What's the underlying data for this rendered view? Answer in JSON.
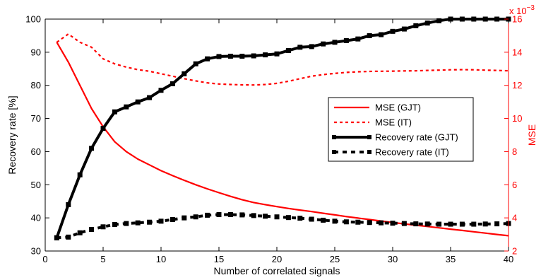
{
  "chart_data": {
    "type": "line",
    "xlabel": "Number of correlated signals",
    "ylabel_left": "Recovery rate [%]",
    "ylabel_right": "MSE",
    "right_axis_exponent": "x 10",
    "right_axis_exponent_power": "−3",
    "x_range": [
      0,
      40
    ],
    "x_ticks": [
      0,
      5,
      10,
      15,
      20,
      25,
      30,
      35,
      40
    ],
    "y_left_range": [
      30,
      100
    ],
    "y_left_ticks": [
      30,
      40,
      50,
      60,
      70,
      80,
      90,
      100
    ],
    "y_right_range": [
      2,
      16
    ],
    "y_right_ticks": [
      2,
      4,
      6,
      8,
      10,
      12,
      14,
      16
    ],
    "grid": false,
    "legend_position": "center-right",
    "colors": {
      "mse": "#ff0000",
      "recovery": "#000000",
      "right_axis": "#ff0000"
    },
    "series": [
      {
        "name": "MSE (GJT)",
        "axis": "right",
        "style": "solid",
        "color": "#ff0000",
        "x": [
          1,
          2,
          3,
          4,
          5,
          6,
          7,
          8,
          9,
          10,
          11,
          12,
          13,
          14,
          15,
          16,
          17,
          18,
          19,
          20,
          21,
          22,
          23,
          24,
          25,
          26,
          27,
          28,
          29,
          30,
          31,
          32,
          33,
          34,
          35,
          36,
          37,
          38,
          39,
          40
        ],
        "y": [
          14.6,
          13.4,
          12.0,
          10.6,
          9.5,
          8.6,
          8.0,
          7.55,
          7.2,
          6.85,
          6.55,
          6.27,
          6.0,
          5.75,
          5.52,
          5.3,
          5.1,
          4.93,
          4.8,
          4.68,
          4.57,
          4.47,
          4.38,
          4.28,
          4.18,
          4.08,
          3.99,
          3.9,
          3.81,
          3.72,
          3.64,
          3.56,
          3.48,
          3.4,
          3.32,
          3.24,
          3.16,
          3.08,
          3.0,
          2.92
        ]
      },
      {
        "name": "MSE (IT)",
        "axis": "right",
        "style": "dotted",
        "color": "#ff0000",
        "x": [
          1,
          2,
          3,
          4,
          5,
          6,
          7,
          8,
          9,
          10,
          11,
          12,
          13,
          14,
          15,
          16,
          17,
          18,
          19,
          20,
          21,
          22,
          23,
          24,
          25,
          26,
          27,
          28,
          29,
          30,
          31,
          32,
          33,
          34,
          35,
          36,
          37,
          38,
          39,
          40
        ],
        "y": [
          14.6,
          15.1,
          14.6,
          14.3,
          13.6,
          13.3,
          13.1,
          12.95,
          12.85,
          12.7,
          12.55,
          12.4,
          12.27,
          12.15,
          12.08,
          12.05,
          12.03,
          12.02,
          12.05,
          12.12,
          12.25,
          12.4,
          12.55,
          12.65,
          12.72,
          12.78,
          12.82,
          12.84,
          12.85,
          12.86,
          12.87,
          12.88,
          12.9,
          12.92,
          12.94,
          12.95,
          12.94,
          12.92,
          12.9,
          12.88
        ]
      },
      {
        "name": "Recovery rate (GJT)",
        "axis": "left",
        "style": "solid-thick",
        "color": "#000000",
        "x": [
          1,
          2,
          3,
          4,
          5,
          6,
          7,
          8,
          9,
          10,
          11,
          12,
          13,
          14,
          15,
          16,
          17,
          18,
          19,
          20,
          21,
          22,
          23,
          24,
          25,
          26,
          27,
          28,
          29,
          30,
          31,
          32,
          33,
          34,
          35,
          36,
          37,
          38,
          39,
          40
        ],
        "y": [
          34,
          44,
          53,
          61,
          67,
          72,
          73.5,
          75,
          76.3,
          78.5,
          80.5,
          83.5,
          86.5,
          88,
          88.7,
          88.8,
          88.8,
          88.9,
          89.2,
          89.5,
          90.5,
          91.5,
          91.7,
          92.5,
          93,
          93.5,
          94,
          95,
          95.3,
          96.3,
          97,
          98,
          98.8,
          99.5,
          100,
          100,
          100,
          100,
          100,
          100
        ]
      },
      {
        "name": "Recovery rate (IT)",
        "axis": "left",
        "style": "dotted-thick",
        "color": "#000000",
        "x": [
          1,
          2,
          3,
          4,
          5,
          6,
          7,
          8,
          9,
          10,
          11,
          12,
          13,
          14,
          15,
          16,
          17,
          18,
          19,
          20,
          21,
          22,
          23,
          24,
          25,
          26,
          27,
          28,
          29,
          30,
          31,
          32,
          33,
          34,
          35,
          36,
          37,
          38,
          39,
          40
        ],
        "y": [
          34,
          34.2,
          35.5,
          36.5,
          37.3,
          38,
          38.3,
          38.5,
          38.7,
          39,
          39.5,
          40,
          40.3,
          40.8,
          41,
          41,
          40.9,
          40.7,
          40.5,
          40.3,
          40.1,
          39.9,
          39.6,
          39.3,
          39,
          38.8,
          38.7,
          38.6,
          38.5,
          38.4,
          38.3,
          38.2,
          38.15,
          38.1,
          38.1,
          38.1,
          38.1,
          38.15,
          38.2,
          38.3
        ]
      }
    ]
  }
}
